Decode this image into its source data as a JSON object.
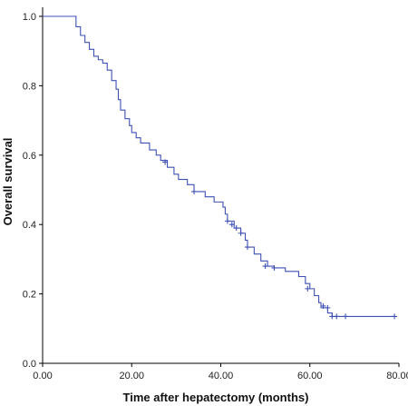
{
  "chart_data": {
    "type": "line",
    "subtype": "kaplan-meier",
    "title": "",
    "xlabel": "Time after hepatectomy (months)",
    "ylabel": "Overall survival",
    "xlim": [
      0,
      80
    ],
    "ylim": [
      0,
      1.0
    ],
    "x_ticks": [
      0,
      20,
      40,
      60,
      80
    ],
    "y_ticks": [
      0.0,
      0.2,
      0.4,
      0.6,
      0.8,
      1.0
    ],
    "x_tick_labels": [
      "0.00",
      "20.00",
      "40.00",
      "60.00",
      "80.00"
    ],
    "y_tick_labels": [
      "0.0",
      "0.2",
      "0.4",
      "0.6",
      "0.8",
      "1.0"
    ],
    "grid": false,
    "legend": "none",
    "series": [
      {
        "color": "#3F51B5",
        "step_points": [
          [
            0,
            1.0
          ],
          [
            7.5,
            0.97
          ],
          [
            8.5,
            0.945
          ],
          [
            9.5,
            0.925
          ],
          [
            10.5,
            0.905
          ],
          [
            11.5,
            0.885
          ],
          [
            12.5,
            0.875
          ],
          [
            13.5,
            0.865
          ],
          [
            14.5,
            0.845
          ],
          [
            15.5,
            0.815
          ],
          [
            16.5,
            0.79
          ],
          [
            17.0,
            0.76
          ],
          [
            17.5,
            0.73
          ],
          [
            18.5,
            0.705
          ],
          [
            19.5,
            0.685
          ],
          [
            20.0,
            0.665
          ],
          [
            21.0,
            0.65
          ],
          [
            22.0,
            0.635
          ],
          [
            24.0,
            0.615
          ],
          [
            25.5,
            0.6
          ],
          [
            26.5,
            0.585
          ],
          [
            28.0,
            0.565
          ],
          [
            29.5,
            0.545
          ],
          [
            30.5,
            0.53
          ],
          [
            32.5,
            0.515
          ],
          [
            34.0,
            0.495
          ],
          [
            36.5,
            0.48
          ],
          [
            38.5,
            0.465
          ],
          [
            40.5,
            0.45
          ],
          [
            41.0,
            0.43
          ],
          [
            41.5,
            0.41
          ],
          [
            43.0,
            0.39
          ],
          [
            44.5,
            0.375
          ],
          [
            45.5,
            0.355
          ],
          [
            46.0,
            0.335
          ],
          [
            47.5,
            0.315
          ],
          [
            49.0,
            0.295
          ],
          [
            50.5,
            0.28
          ],
          [
            52.0,
            0.275
          ],
          [
            54.5,
            0.265
          ],
          [
            57.5,
            0.25
          ],
          [
            59.0,
            0.23
          ],
          [
            60.0,
            0.215
          ],
          [
            61.0,
            0.195
          ],
          [
            62.0,
            0.175
          ],
          [
            62.5,
            0.16
          ],
          [
            64.0,
            0.145
          ],
          [
            65.0,
            0.135
          ],
          [
            79.0,
            0.135
          ]
        ],
        "censor_points": [
          [
            27.5,
            0.58
          ],
          [
            34.0,
            0.495
          ],
          [
            41.5,
            0.41
          ],
          [
            42.5,
            0.4
          ],
          [
            43.5,
            0.39
          ],
          [
            44.5,
            0.375
          ],
          [
            46.0,
            0.335
          ],
          [
            50.0,
            0.28
          ],
          [
            52.0,
            0.275
          ],
          [
            59.5,
            0.215
          ],
          [
            63.0,
            0.165
          ],
          [
            64.0,
            0.16
          ],
          [
            65.0,
            0.135
          ],
          [
            66.0,
            0.135
          ],
          [
            68.0,
            0.135
          ],
          [
            79.0,
            0.135
          ]
        ]
      }
    ]
  }
}
